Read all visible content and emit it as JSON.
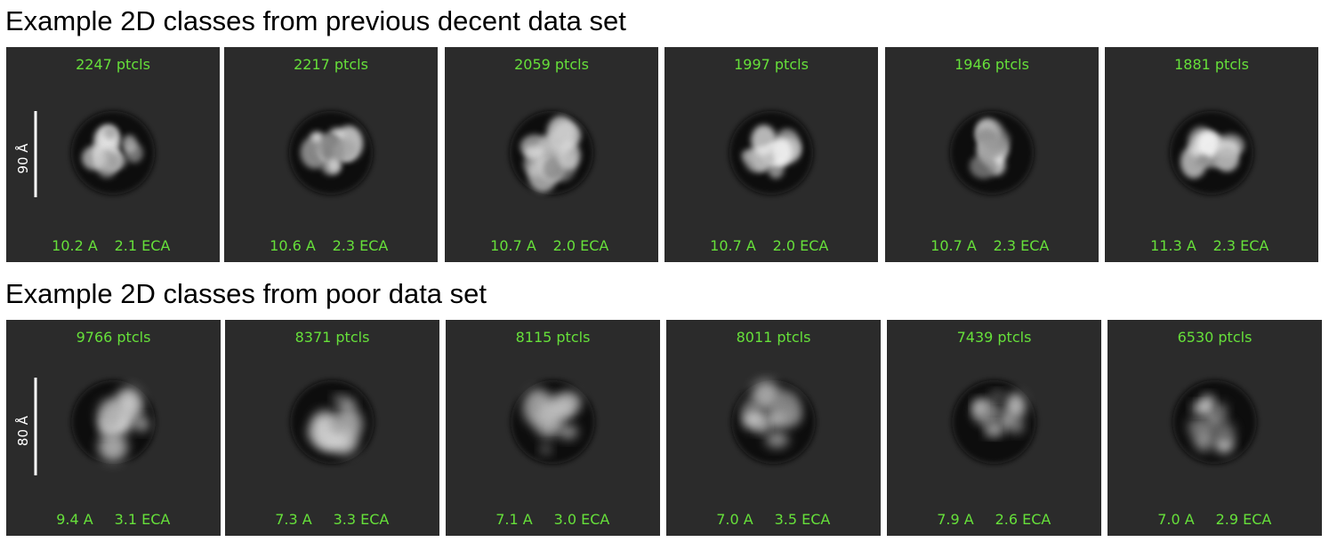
{
  "sections": [
    {
      "title": "Example 2D classes from previous decent data set",
      "scale_bar": "90 Å",
      "panels": [
        {
          "particles": "2247 ptcls",
          "resolution": "10.2 A",
          "eca": "2.1 ECA"
        },
        {
          "particles": "2217 ptcls",
          "resolution": "10.6 A",
          "eca": "2.3 ECA"
        },
        {
          "particles": "2059 ptcls",
          "resolution": "10.7 A",
          "eca": "2.0 ECA"
        },
        {
          "particles": "1997 ptcls",
          "resolution": "10.7 A",
          "eca": "2.0 ECA"
        },
        {
          "particles": "1946 ptcls",
          "resolution": "10.7 A",
          "eca": "2.3 ECA"
        },
        {
          "particles": "1881 ptcls",
          "resolution": "11.3 A",
          "eca": "2.3 ECA"
        }
      ]
    },
    {
      "title": "Example 2D classes from poor data set",
      "scale_bar": "80 Å",
      "panels": [
        {
          "particles": "9766 ptcls",
          "resolution": "9.4 A",
          "eca": "3.1 ECA"
        },
        {
          "particles": "8371 ptcls",
          "resolution": "7.3 A",
          "eca": "3.3 ECA"
        },
        {
          "particles": "8115 ptcls",
          "resolution": "7.1 A",
          "eca": "3.0 ECA"
        },
        {
          "particles": "8011 ptcls",
          "resolution": "7.0 A",
          "eca": "3.5 ECA"
        },
        {
          "particles": "7439 ptcls",
          "resolution": "7.9 A",
          "eca": "2.6 ECA"
        },
        {
          "particles": "6530 ptcls",
          "resolution": "7.0 A",
          "eca": "2.9 ECA"
        }
      ]
    }
  ]
}
